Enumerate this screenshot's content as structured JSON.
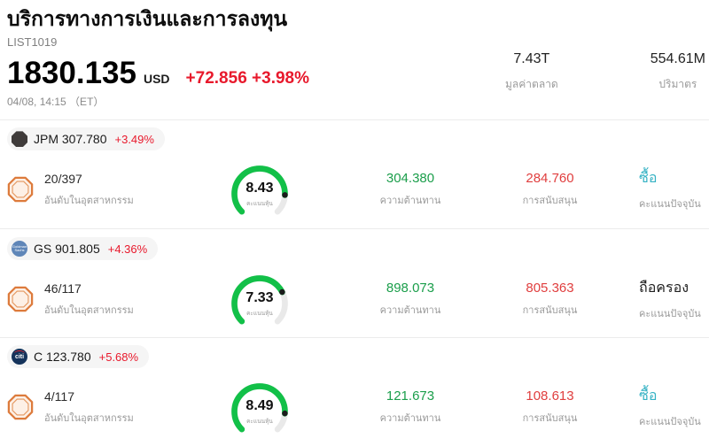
{
  "header": {
    "title": "บริการทางการเงินและการลงทุน",
    "list_id": "LIST1019",
    "price": "1830.135",
    "currency": "USD",
    "change": "+72.856 +3.98%",
    "datetime": "04/08, 14:15 （ET）",
    "market_cap": {
      "value": "7.43T",
      "label": "มูลค่าตลาด"
    },
    "volume": {
      "value": "554.61M",
      "label": "ปริมาตร"
    }
  },
  "labels": {
    "rank": "อันดับในอุตสาหกรรม",
    "score": "คะแนนหุ้น",
    "resistance": "ความต้านทาน",
    "support": "การสนับสนุน",
    "current_score": "คะแนนปัจจุบัน"
  },
  "colors": {
    "change": "#e8192c",
    "resistance": "#1b9e4b",
    "support": "#e03e3e",
    "buy": "#35b2c4",
    "gauge": "#12c048"
  },
  "stocks": [
    {
      "ticker": "JPM",
      "price": "307.780",
      "change": "+3.49%",
      "logo_text": "",
      "rank": "20/397",
      "score": "8.43",
      "score_value": 8.43,
      "resistance": "304.380",
      "support": "284.760",
      "signal": "ซื้อ"
    },
    {
      "ticker": "GS",
      "price": "901.805",
      "change": "+4.36%",
      "logo_text": "Goldman Sachs",
      "rank": "46/117",
      "score": "7.33",
      "score_value": 7.33,
      "resistance": "898.073",
      "support": "805.363",
      "signal": "ถือครอง"
    },
    {
      "ticker": "C",
      "price": "123.780",
      "change": "+5.68%",
      "logo_text": "citi",
      "rank": "4/117",
      "score": "8.49",
      "score_value": 8.49,
      "resistance": "121.673",
      "support": "108.613",
      "signal": "ซื้อ"
    }
  ]
}
